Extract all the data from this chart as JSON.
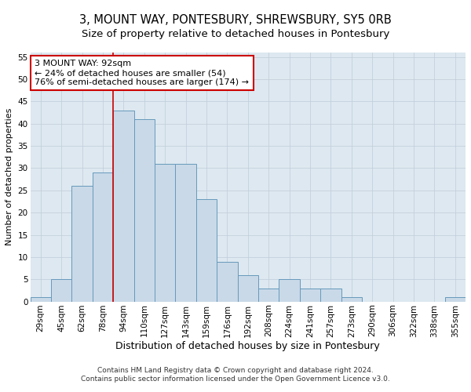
{
  "title": "3, MOUNT WAY, PONTESBURY, SHREWSBURY, SY5 0RB",
  "subtitle": "Size of property relative to detached houses in Pontesbury",
  "xlabel": "Distribution of detached houses by size in Pontesbury",
  "ylabel": "Number of detached properties",
  "categories": [
    "29sqm",
    "45sqm",
    "62sqm",
    "78sqm",
    "94sqm",
    "110sqm",
    "127sqm",
    "143sqm",
    "159sqm",
    "176sqm",
    "192sqm",
    "208sqm",
    "224sqm",
    "241sqm",
    "257sqm",
    "273sqm",
    "290sqm",
    "306sqm",
    "322sqm",
    "338sqm",
    "355sqm"
  ],
  "values": [
    1,
    5,
    26,
    29,
    43,
    41,
    31,
    31,
    23,
    9,
    6,
    3,
    5,
    3,
    3,
    1,
    0,
    0,
    0,
    0,
    1
  ],
  "bar_color": "#c9d9e8",
  "bar_edge_color": "#6699bb",
  "highlight_line_color": "#cc0000",
  "annotation_line1": "3 MOUNT WAY: 92sqm",
  "annotation_line2": "← 24% of detached houses are smaller (54)",
  "annotation_line3": "76% of semi-detached houses are larger (174) →",
  "annotation_box_color": "#ffffff",
  "annotation_box_edge_color": "#cc0000",
  "ylim": [
    0,
    56
  ],
  "yticks": [
    0,
    5,
    10,
    15,
    20,
    25,
    30,
    35,
    40,
    45,
    50,
    55
  ],
  "grid_color": "#c0ccd8",
  "bg_color": "#dde8f0",
  "footer_line1": "Contains HM Land Registry data © Crown copyright and database right 2024.",
  "footer_line2": "Contains public sector information licensed under the Open Government Licence v3.0.",
  "title_fontsize": 10.5,
  "subtitle_fontsize": 9.5,
  "xlabel_fontsize": 9,
  "ylabel_fontsize": 8,
  "tick_fontsize": 7.5,
  "annotation_fontsize": 8,
  "footer_fontsize": 6.5
}
